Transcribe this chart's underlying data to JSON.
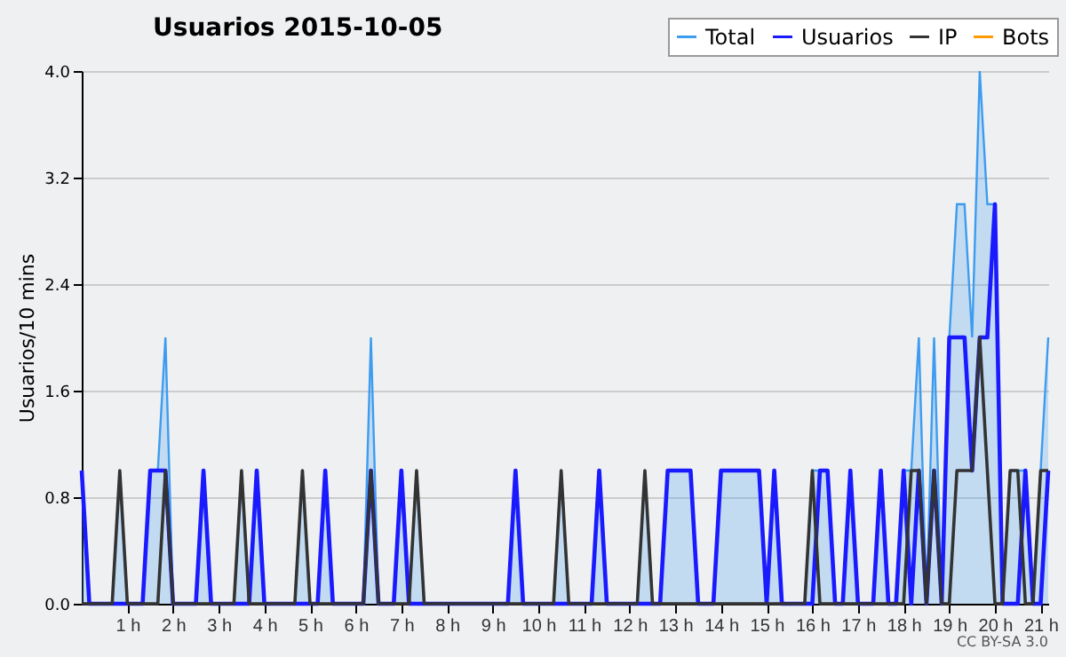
{
  "chart_data": {
    "type": "line",
    "title": "Usuarios  2015-10-05",
    "ylabel": "Usuarios/10 mins",
    "annotations": [
      "CC BY-SA 3.0"
    ],
    "x": [
      0,
      0.1667,
      0.3333,
      0.5,
      0.6667,
      0.8333,
      1,
      1.1667,
      1.3333,
      1.5,
      1.6667,
      1.8333,
      2,
      2.1667,
      2.3333,
      2.5,
      2.6667,
      2.8333,
      3,
      3.1667,
      3.3333,
      3.5,
      3.6667,
      3.8333,
      4,
      4.1667,
      4.3333,
      4.5,
      4.6667,
      4.8333,
      5,
      5.1667,
      5.3333,
      5.5,
      5.6667,
      5.8333,
      6,
      6.1667,
      6.3333,
      6.5,
      6.6667,
      6.8333,
      7,
      7.1667,
      7.3333,
      7.5,
      7.6667,
      7.8333,
      8,
      8.1667,
      8.3333,
      8.5,
      8.6667,
      8.8333,
      9,
      9.1667,
      9.3333,
      9.5,
      9.6667,
      9.8333,
      10,
      10.1667,
      10.3333,
      10.5,
      10.6667,
      10.8333,
      11,
      11.1667,
      11.3333,
      11.5,
      11.6667,
      11.8333,
      12,
      12.1667,
      12.3333,
      12.5,
      12.6667,
      12.8333,
      13,
      13.1667,
      13.3333,
      13.5,
      13.6667,
      13.8333,
      14,
      14.1667,
      14.3333,
      14.5,
      14.6667,
      14.8333,
      15,
      15.1667,
      15.3333,
      15.5,
      15.6667,
      15.8333,
      16,
      16.1667,
      16.3333,
      16.5,
      16.6667,
      16.8333,
      17,
      17.1667,
      17.3333,
      17.5,
      17.6667,
      17.8333,
      18,
      18.1667,
      18.3333,
      18.5,
      18.6667,
      18.8333,
      19,
      19.1667,
      19.3333,
      19.5,
      19.6667,
      19.8333,
      20,
      20.1667,
      20.3333,
      20.5,
      20.6667,
      20.8333,
      21,
      21.1667
    ],
    "series": [
      {
        "name": "Total",
        "type": "area",
        "color": "#3d9cf0",
        "values": [
          1,
          0,
          0,
          0,
          0,
          1,
          0,
          0,
          0,
          1,
          1,
          2,
          0,
          0,
          0,
          0,
          1,
          0,
          0,
          0,
          0,
          1,
          0,
          1,
          0,
          0,
          0,
          0,
          0,
          1,
          0,
          0,
          1,
          0,
          0,
          0,
          0,
          0,
          2,
          0,
          0,
          0,
          1,
          0,
          1,
          0,
          0,
          0,
          0,
          0,
          0,
          0,
          0,
          0,
          0,
          0,
          0,
          1,
          0,
          0,
          0,
          0,
          0,
          1,
          0,
          0,
          0,
          0,
          1,
          0,
          0,
          0,
          0,
          0,
          1,
          0,
          0,
          1,
          1,
          1,
          1,
          0,
          0,
          0,
          1,
          1,
          1,
          1,
          1,
          1,
          0,
          1,
          0,
          0,
          0,
          0,
          1,
          1,
          1,
          0,
          0,
          1,
          0,
          0,
          0,
          1,
          0,
          0,
          1,
          1,
          2,
          0,
          2,
          0,
          2,
          3,
          3,
          2,
          4,
          3,
          3,
          0,
          1,
          1,
          1,
          0,
          1,
          2
        ]
      },
      {
        "name": "Usuarios",
        "color": "#1a1aff",
        "values": [
          1,
          0,
          0,
          0,
          0,
          0,
          0,
          0,
          0,
          1,
          1,
          1,
          0,
          0,
          0,
          0,
          1,
          0,
          0,
          0,
          0,
          0,
          0,
          1,
          0,
          0,
          0,
          0,
          0,
          0,
          0,
          0,
          1,
          0,
          0,
          0,
          0,
          0,
          1,
          0,
          0,
          0,
          1,
          0,
          0,
          0,
          0,
          0,
          0,
          0,
          0,
          0,
          0,
          0,
          0,
          0,
          0,
          1,
          0,
          0,
          0,
          0,
          0,
          0,
          0,
          0,
          0,
          0,
          1,
          0,
          0,
          0,
          0,
          0,
          0,
          0,
          0,
          1,
          1,
          1,
          1,
          0,
          0,
          0,
          1,
          1,
          1,
          1,
          1,
          1,
          0,
          1,
          0,
          0,
          0,
          0,
          0,
          1,
          1,
          0,
          0,
          1,
          0,
          0,
          0,
          1,
          0,
          0,
          1,
          0,
          1,
          0,
          1,
          0,
          2,
          2,
          2,
          1,
          2,
          2,
          3,
          0,
          0,
          0,
          1,
          0,
          0,
          1
        ]
      },
      {
        "name": "IP",
        "color": "#333333",
        "values": [
          0,
          0,
          0,
          0,
          0,
          1,
          0,
          0,
          0,
          0,
          0,
          1,
          0,
          0,
          0,
          0,
          0,
          0,
          0,
          0,
          0,
          1,
          0,
          0,
          0,
          0,
          0,
          0,
          0,
          1,
          0,
          0,
          0,
          0,
          0,
          0,
          0,
          0,
          1,
          0,
          0,
          0,
          0,
          0,
          1,
          0,
          0,
          0,
          0,
          0,
          0,
          0,
          0,
          0,
          0,
          0,
          0,
          0,
          0,
          0,
          0,
          0,
          0,
          1,
          0,
          0,
          0,
          0,
          0,
          0,
          0,
          0,
          0,
          0,
          1,
          0,
          0,
          0,
          0,
          0,
          0,
          0,
          0,
          0,
          0,
          0,
          0,
          0,
          0,
          0,
          0,
          0,
          0,
          0,
          0,
          0,
          1,
          0,
          0,
          0,
          0,
          0,
          0,
          0,
          0,
          0,
          0,
          0,
          0,
          1,
          1,
          0,
          1,
          0,
          0,
          1,
          1,
          1,
          2,
          1,
          0,
          0,
          1,
          1,
          0,
          0,
          1,
          1
        ]
      },
      {
        "name": "Bots",
        "color": "#ff9900",
        "values": [
          null,
          null,
          null,
          null,
          null,
          null,
          null,
          null,
          null,
          null,
          null,
          null,
          null,
          null,
          null,
          null,
          null,
          null,
          null,
          null,
          null,
          null,
          null,
          null,
          null,
          null,
          null,
          null,
          null,
          null,
          null,
          null,
          null,
          null,
          null,
          null,
          null,
          null,
          null,
          null,
          null,
          null,
          null,
          null,
          null,
          null,
          null,
          null,
          null,
          null,
          null,
          null,
          null,
          null,
          null,
          null,
          null,
          null,
          null,
          null,
          null,
          null,
          null,
          null,
          null,
          null,
          null,
          null,
          null,
          null,
          null,
          null,
          null,
          null,
          null,
          null,
          null,
          null,
          null,
          null,
          null,
          null,
          null,
          null,
          null,
          null,
          null,
          null,
          null,
          null,
          null,
          null,
          null,
          null,
          null,
          null,
          null,
          null,
          null,
          null,
          null,
          null,
          null,
          null,
          null,
          null,
          null,
          null,
          null,
          null,
          null,
          null,
          null,
          null,
          null,
          null,
          null,
          null,
          null,
          null,
          null,
          null,
          null,
          null,
          null,
          null,
          null,
          null
        ]
      }
    ],
    "xlim": [
      0,
      21.1667
    ],
    "xticks": [
      {
        "value": 1,
        "label": "1 h"
      },
      {
        "value": 2,
        "label": "2 h"
      },
      {
        "value": 3,
        "label": "3 h"
      },
      {
        "value": 4,
        "label": "4 h"
      },
      {
        "value": 5,
        "label": "5 h"
      },
      {
        "value": 6,
        "label": "6 h"
      },
      {
        "value": 7,
        "label": "7 h"
      },
      {
        "value": 8,
        "label": "8 h"
      },
      {
        "value": 9,
        "label": "9 h"
      },
      {
        "value": 10,
        "label": "10 h"
      },
      {
        "value": 11,
        "label": "11 h"
      },
      {
        "value": 12,
        "label": "12 h"
      },
      {
        "value": 13,
        "label": "13 h"
      },
      {
        "value": 14,
        "label": "14 h"
      },
      {
        "value": 15,
        "label": "15 h"
      },
      {
        "value": 16,
        "label": "16 h"
      },
      {
        "value": 17,
        "label": "17 h"
      },
      {
        "value": 18,
        "label": "18 h"
      },
      {
        "value": 19,
        "label": "19 h"
      },
      {
        "value": 20,
        "label": "20 h"
      },
      {
        "value": 21,
        "label": "21 h"
      }
    ],
    "ylim": [
      0,
      4
    ],
    "yticks": [
      {
        "value": 0,
        "label": "0.0"
      },
      {
        "value": 0.8,
        "label": "0.8"
      },
      {
        "value": 1.6,
        "label": "1.6"
      },
      {
        "value": 2.4,
        "label": "2.4"
      },
      {
        "value": 3.2,
        "label": "3.2"
      },
      {
        "value": 4,
        "label": "4.0"
      }
    ],
    "grid": "y",
    "legend": "top right"
  }
}
